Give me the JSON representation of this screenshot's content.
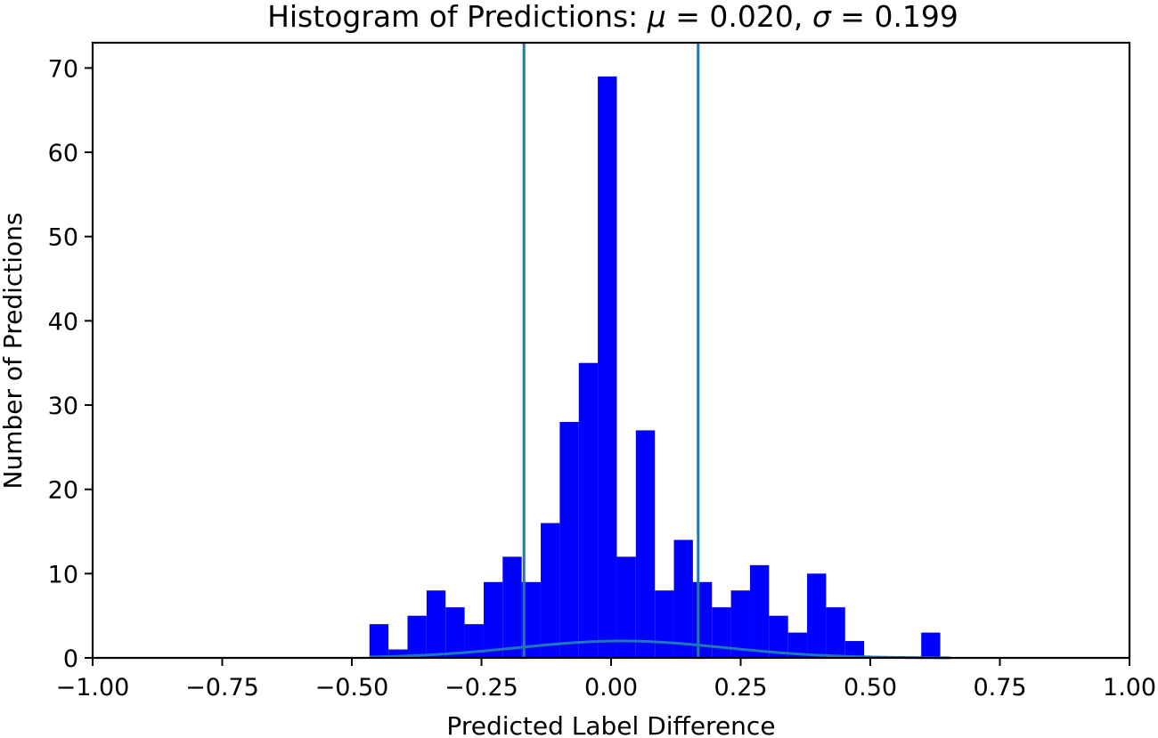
{
  "chart_data": {
    "type": "bar",
    "title_prefix": "Histogram of Predictions: ",
    "title_mu": "μ",
    "title_mu_value": " = 0.020, ",
    "title_sigma": "σ",
    "title_sigma_value": " = 0.199",
    "xlabel": "Predicted Label Difference",
    "ylabel": "Number of Predictions",
    "xlim": [
      -1.0,
      1.0
    ],
    "ylim": [
      0,
      73
    ],
    "xticks": [
      -1.0,
      -0.75,
      -0.5,
      -0.25,
      0.0,
      0.25,
      0.5,
      0.75,
      1.0
    ],
    "xtick_labels": [
      "−1.00",
      "−0.75",
      "−0.50",
      "−0.25",
      "0.00",
      "0.25",
      "0.50",
      "0.75",
      "1.00"
    ],
    "yticks": [
      0,
      10,
      20,
      30,
      40,
      50,
      60,
      70
    ],
    "ytick_labels": [
      "0",
      "10",
      "20",
      "30",
      "40",
      "50",
      "60",
      "70"
    ],
    "bin_edges": [
      -0.466,
      -0.4293,
      -0.3926,
      -0.3559,
      -0.3192,
      -0.2825,
      -0.2458,
      -0.2091,
      -0.1724,
      -0.1357,
      -0.099,
      -0.0623,
      -0.0256,
      0.0111,
      0.0478,
      0.0845,
      0.1212,
      0.1579,
      0.1946,
      0.2313,
      0.268,
      0.3047,
      0.3414,
      0.3781,
      0.4148,
      0.4515,
      0.4882,
      0.5249,
      0.5616,
      0.5983,
      0.635,
      0.6717
    ],
    "counts": [
      4,
      1,
      5,
      8,
      6,
      4,
      9,
      12,
      9,
      16,
      28,
      35,
      69,
      12,
      27,
      8,
      14,
      9,
      6,
      8,
      11,
      5,
      3,
      10,
      6,
      2,
      0,
      0,
      0,
      3,
      0
    ],
    "vlines": [
      -0.168,
      0.168
    ],
    "normal_curve": {
      "mu": 0.02,
      "sigma": 0.199,
      "x_range": [
        -0.466,
        0.654
      ],
      "scale": 1.0
    },
    "colors": {
      "bars": "#0000ff",
      "lines": "#1f77b4"
    },
    "grid": false
  }
}
